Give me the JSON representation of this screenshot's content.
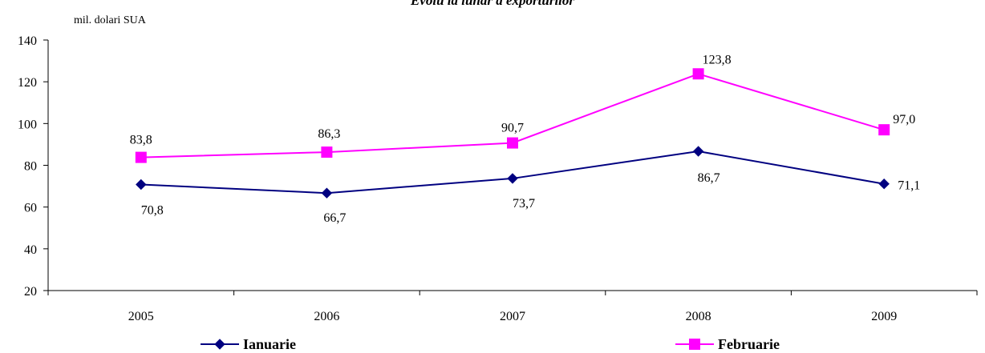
{
  "chart_data": {
    "type": "line",
    "title": "Evolu ia lunar  a exporturilor",
    "unit_label": "mil. dolari SUA",
    "categories": [
      "2005",
      "2006",
      "2007",
      "2008",
      "2009"
    ],
    "ylim": [
      20,
      140
    ],
    "yticks": [
      20,
      40,
      60,
      80,
      100,
      120,
      140
    ],
    "grid": false,
    "legend_position": "bottom",
    "series": [
      {
        "name": "Ianuarie",
        "color": "#000080",
        "marker": "diamond",
        "values": [
          70.8,
          66.7,
          73.7,
          86.7,
          71.1
        ],
        "labels": [
          "70,8",
          "66,7",
          "73,7",
          "86,7",
          "71,1"
        ]
      },
      {
        "name": "Februarie",
        "color": "#ff00ff",
        "marker": "square",
        "values": [
          83.8,
          86.3,
          90.7,
          123.8,
          97.0
        ],
        "labels": [
          "83,8",
          "86,3",
          "90,7",
          "123,8",
          "97,0"
        ]
      }
    ]
  }
}
